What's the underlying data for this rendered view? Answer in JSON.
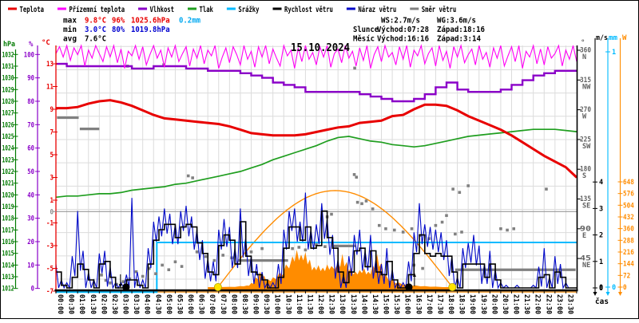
{
  "window": {
    "title": "15.10.2024",
    "bg": "#ffffff"
  },
  "legend": {
    "items": [
      {
        "label": "Teplota",
        "color": "#e80000"
      },
      {
        "label": "Přízemní teplota",
        "color": "#ff00ff"
      },
      {
        "label": "Vlhkost",
        "color": "#8a00c8"
      },
      {
        "label": "Tlak",
        "color": "#1f9e1f"
      },
      {
        "label": "Srážky",
        "color": "#00baff"
      },
      {
        "label": "Rychlost větru",
        "color": "#000000"
      },
      {
        "label": "Náraz větru",
        "color": "#0008c8"
      },
      {
        "label": "Směr větru",
        "color": "#808080"
      }
    ]
  },
  "stats": {
    "rows": [
      {
        "label": "max",
        "temp": "9.8°C",
        "hum": "96%",
        "pres": "1025.6hPa",
        "rain": "0.2mm"
      },
      {
        "label": "min",
        "temp": "3.0°C",
        "hum": "80%",
        "pres": "1019.8hPa",
        "rain": ""
      },
      {
        "label": "avg",
        "temp": "7.6°C",
        "hum": "",
        "pres": "",
        "rain": ""
      }
    ],
    "value_colors": {
      "max": "#e80000",
      "min": "#0000d0",
      "avg": "#000000",
      "rain": "#00a8f0"
    }
  },
  "wind_info": {
    "ws": "WS:2.7m/s",
    "wg": "WG:3.6m/s"
  },
  "sun_info": {
    "label": "Slunce",
    "rise": "Východ:07:28",
    "set": "Západ:18:16"
  },
  "moon_info": {
    "label": "Měsíc",
    "rise": "Východ:16:16",
    "set": "Západ:3:14"
  },
  "axes": {
    "pressure": {
      "unit": "hPa",
      "min": 1012,
      "max": 1032,
      "step": 1,
      "color": "#007a00"
    },
    "humidity": {
      "unit": "%",
      "ticks": [
        100,
        90,
        80,
        70,
        60,
        50,
        40,
        30,
        20,
        10,
        0
      ],
      "color": "#8a00c8"
    },
    "temperature": {
      "unit": "°C",
      "ticks": [
        13,
        11,
        9,
        7,
        5,
        3,
        1,
        0,
        -1,
        -3,
        -5,
        -7
      ],
      "color": "#e80000",
      "zero_color": "#8c8c8c"
    },
    "direction": {
      "unit": "°",
      "ticks": [
        [
          360,
          "N"
        ],
        [
          315,
          "NW"
        ],
        [
          270,
          "W"
        ],
        [
          225,
          "SW"
        ],
        [
          180,
          "S"
        ],
        [
          135,
          "SE"
        ],
        [
          90,
          "E"
        ],
        [
          45,
          "NE"
        ]
      ],
      "color": "#000000",
      "label_color": "#606060"
    },
    "wind": {
      "unit": "m/s",
      "ticks": [
        0,
        1,
        2,
        3,
        4
      ],
      "color": "#000000"
    },
    "rain": {
      "unit": "mm",
      "ticks": [
        0,
        1
      ],
      "color": "#00baff"
    },
    "radiation": {
      "unit": "W",
      "ticks": [
        0,
        72,
        144,
        216,
        288,
        360,
        432,
        504,
        576,
        648
      ],
      "color": "#ff8c00"
    }
  },
  "time_axis": {
    "caption": "čas",
    "labels": [
      "00:00",
      "00:30",
      "01:00",
      "01:30",
      "02:00",
      "02:30",
      "03:00",
      "03:30",
      "04:00",
      "04:30",
      "05:00",
      "05:30",
      "06:00",
      "06:30",
      "07:00",
      "07:30",
      "08:00",
      "08:30",
      "09:00",
      "09:30",
      "10:00",
      "10:30",
      "11:00",
      "11:30",
      "12:00",
      "12:30",
      "13:00",
      "13:30",
      "14:00",
      "14:30",
      "15:00",
      "15:30",
      "16:00",
      "16:30",
      "17:00",
      "17:30",
      "18:00",
      "18:30",
      "19:00",
      "19:30",
      "20:00",
      "20:30",
      "21:00",
      "21:30",
      "22:00",
      "22:30",
      "23:00",
      "23:30"
    ]
  },
  "chart_data": {
    "type": "line",
    "x_unit": "hours 0-24",
    "title": "15.10.2024",
    "series": [
      {
        "name": "Teplota",
        "unit": "°C",
        "color": "#e80000",
        "interval_min": 30,
        "values": [
          9.1,
          9.1,
          9.2,
          9.5,
          9.7,
          9.8,
          9.6,
          9.3,
          8.9,
          8.5,
          8.2,
          8.1,
          8.0,
          7.9,
          7.8,
          7.7,
          7.5,
          7.2,
          6.9,
          6.8,
          6.7,
          6.7,
          6.7,
          6.8,
          7.0,
          7.2,
          7.4,
          7.5,
          7.8,
          7.9,
          8.0,
          8.4,
          8.5,
          9.0,
          9.4,
          9.4,
          9.3,
          8.9,
          8.4,
          8.0,
          7.6,
          7.2,
          6.7,
          6.1,
          5.5,
          4.9,
          4.4,
          3.9,
          3.0
        ]
      },
      {
        "name": "Vlhkost",
        "unit": "%",
        "color": "#8a00c8",
        "interval_min": 30,
        "values": [
          96,
          95,
          95,
          95,
          95,
          95,
          95,
          94,
          94,
          95,
          95,
          95,
          94,
          94,
          93,
          93,
          93,
          92,
          91,
          90,
          88,
          87,
          86,
          84,
          84,
          84,
          84,
          84,
          83,
          82,
          81,
          80,
          80,
          81,
          83,
          86,
          88,
          85,
          84,
          84,
          84,
          85,
          87,
          89,
          91,
          92,
          93,
          93,
          93
        ]
      },
      {
        "name": "Tlak",
        "unit": "hPa",
        "color": "#1f9e1f",
        "interval_min": 30,
        "values": [
          1019.8,
          1019.9,
          1019.9,
          1020.0,
          1020.1,
          1020.1,
          1020.2,
          1020.4,
          1020.5,
          1020.6,
          1020.7,
          1020.9,
          1021.0,
          1021.2,
          1021.4,
          1021.6,
          1021.8,
          1022.0,
          1022.3,
          1022.6,
          1023.0,
          1023.3,
          1023.6,
          1023.9,
          1024.2,
          1024.6,
          1024.9,
          1025.0,
          1024.8,
          1024.6,
          1024.5,
          1024.3,
          1024.2,
          1024.1,
          1024.2,
          1024.4,
          1024.6,
          1024.8,
          1025.0,
          1025.1,
          1025.2,
          1025.3,
          1025.4,
          1025.5,
          1025.6,
          1025.6,
          1025.6,
          1025.5,
          1025.4
        ]
      },
      {
        "name": "Přízemní teplota",
        "unit": "°C",
        "color": "#ff00f5",
        "interval_min": 10,
        "values": [
          13.9,
          14.5,
          13.6,
          14.6,
          13.3,
          14.4,
          13.8,
          14.6,
          12.8,
          14.2,
          13.5,
          14.6,
          13.9,
          13.2,
          14.5,
          13.6,
          14.6,
          13.1,
          14.3,
          12.6,
          14.1,
          13.7,
          14.6,
          13.4,
          14.5,
          12.9,
          13.8,
          14.6,
          13.5,
          14.2,
          12.7,
          14.4,
          13.6,
          14.6,
          13.2,
          13.9,
          14.5,
          12.8,
          14.3,
          13.5,
          14.6,
          13.0,
          14.2,
          13.7,
          14.6,
          12.6,
          13.6,
          14.4,
          13.1,
          14.5,
          13.8,
          12.9,
          14.6,
          13.4,
          14.1,
          12.7,
          14.5,
          13.6,
          14.6,
          13.0,
          14.3,
          13.5,
          12.8,
          14.6,
          13.7,
          14.2,
          12.6,
          14.4,
          13.2,
          14.6,
          13.4,
          14.0,
          12.9,
          14.5,
          13.6,
          14.6,
          12.7,
          13.9,
          14.3,
          13.1,
          14.6,
          13.5,
          14.1,
          12.8,
          14.4,
          13.3,
          14.6,
          12.6,
          13.8,
          14.5,
          13.2,
          14.6,
          13.6,
          14.0,
          12.9,
          14.5,
          13.4,
          14.6,
          12.7,
          14.2,
          13.7,
          14.6,
          13.0,
          13.9,
          14.4,
          12.8,
          14.6,
          13.3,
          14.1,
          12.6,
          14.5,
          13.6,
          14.6,
          13.1,
          13.8,
          14.3,
          12.9,
          14.6,
          13.4,
          14.0,
          12.7,
          14.4,
          13.5,
          14.6,
          12.8,
          13.7,
          14.5,
          13.2,
          14.6,
          12.6,
          14.1,
          13.6,
          14.6,
          13.0,
          14.3,
          12.9,
          14.5,
          13.5,
          13.9,
          14.6,
          12.8,
          14.2,
          13.4,
          14.6,
          13.2
        ]
      },
      {
        "name": "Rychlost větru",
        "unit": "m/s",
        "color": "#000000",
        "interval_min": 15,
        "values": [
          0.6,
          0.1,
          0,
          0.4,
          0.9,
          0.7,
          0.3,
          0,
          0.9,
          1.0,
          0.4,
          0,
          0,
          0.3,
          0.3,
          0.1,
          0,
          0.9,
          1.8,
          2.2,
          2.4,
          2.4,
          1.9,
          2.3,
          2.4,
          2.3,
          1.7,
          1.3,
          0.6,
          0.5,
          1.6,
          2.0,
          1.8,
          0.9,
          2.5,
          1.2,
          0.6,
          0.5,
          0.3,
          0,
          0,
          0.4,
          1.5,
          2.3,
          2.3,
          1.8,
          2.3,
          1.5,
          1.6,
          2.9,
          1.9,
          1.5,
          0.6,
          0.2,
          0.6,
          1.4,
          1.5,
          0.8,
          1.4,
          0.6,
          0.5,
          1.0,
          0.3,
          0,
          0,
          0.5,
          1.3,
          2.0,
          1.3,
          1.2,
          1.3,
          1.2,
          1.2,
          0.6,
          0,
          0.9,
          0.9,
          0.9,
          0.9,
          0.4,
          0.9,
          0.3,
          0,
          0,
          0,
          0,
          0,
          0,
          0,
          0.4,
          0.5,
          0,
          0.6,
          0.4,
          0,
          0,
          0
        ]
      },
      {
        "name": "Náraz větru",
        "unit": "m/s",
        "color": "#0008c8",
        "interval_min": 15,
        "values": [
          0.9,
          0.3,
          0.2,
          1.2,
          2.9,
          1.4,
          0.6,
          0.3,
          1.3,
          1.4,
          0.8,
          0.2,
          0.2,
          0.5,
          3.4,
          0.6,
          0.3,
          1.5,
          2.5,
          2.7,
          3.0,
          2.8,
          2.4,
          2.9,
          3.1,
          2.7,
          2.2,
          1.8,
          1.1,
          1.0,
          2.2,
          2.6,
          2.3,
          1.5,
          3.0,
          1.9,
          1.2,
          0.9,
          0.6,
          0.2,
          0.2,
          0.9,
          2.2,
          2.9,
          3.0,
          2.5,
          3.6,
          2.2,
          2.4,
          3.2,
          2.6,
          2.0,
          1.1,
          0.5,
          1.2,
          2.0,
          2.2,
          1.4,
          2.0,
          1.1,
          0.9,
          1.5,
          0.7,
          0.2,
          0.2,
          1.0,
          2.1,
          3.2,
          2.4,
          2.3,
          2.2,
          2.1,
          1.8,
          1.2,
          0.4,
          1.5,
          1.7,
          2.0,
          1.6,
          0.9,
          1.4,
          0.7,
          0.2,
          0.1,
          0,
          0.1,
          0,
          0,
          0.1,
          0.8,
          1.5,
          0.4,
          1.2,
          0.9,
          0.2,
          0,
          0
        ]
      },
      {
        "name": "Srážky kumulativně",
        "unit": "mm",
        "color": "#00baff",
        "steps": [
          [
            0,
            0
          ],
          [
            4.65,
            0.19
          ],
          [
            24,
            0.19
          ]
        ]
      },
      {
        "name": "Sluneční záření měřené",
        "unit": "W",
        "color": "#ff8c00",
        "fill": true,
        "points": [
          [
            7.0,
            0
          ],
          [
            8.0,
            2
          ],
          [
            8.5,
            6
          ],
          [
            8.8,
            10
          ],
          [
            9.0,
            25
          ],
          [
            9.2,
            60
          ],
          [
            9.4,
            95
          ],
          [
            9.6,
            70
          ],
          [
            9.8,
            45
          ],
          [
            10.0,
            60
          ],
          [
            10.3,
            90
          ],
          [
            10.6,
            140
          ],
          [
            10.9,
            190
          ],
          [
            11.1,
            230
          ],
          [
            11.3,
            200
          ],
          [
            11.5,
            215
          ],
          [
            11.7,
            170
          ],
          [
            11.9,
            125
          ],
          [
            12.1,
            135
          ],
          [
            12.3,
            120
          ],
          [
            12.5,
            140
          ],
          [
            12.7,
            130
          ],
          [
            13.0,
            150
          ],
          [
            13.2,
            205
          ],
          [
            13.4,
            155
          ],
          [
            13.6,
            120
          ],
          [
            13.8,
            95
          ],
          [
            14.0,
            105
          ],
          [
            14.2,
            118
          ],
          [
            14.4,
            95
          ],
          [
            14.6,
            135
          ],
          [
            14.8,
            205
          ],
          [
            15.0,
            150
          ],
          [
            15.2,
            80
          ],
          [
            15.5,
            45
          ],
          [
            15.8,
            28
          ],
          [
            16.2,
            18
          ],
          [
            16.6,
            10
          ],
          [
            17.0,
            6
          ],
          [
            17.5,
            3
          ],
          [
            18.2,
            0
          ]
        ]
      },
      {
        "name": "Sluneční záření teoretické",
        "unit": "W",
        "color": "#ff8c00",
        "sunrise": 7.467,
        "sunset": 18.267,
        "peak": 594
      },
      {
        "name": "Směr větru",
        "unit": "°",
        "color": "#808080",
        "segments": [
          [
            0.05,
            1.05,
            258
          ],
          [
            1.1,
            2.0,
            241
          ],
          [
            8.4,
            10.7,
            42
          ],
          [
            12.8,
            13.8,
            64
          ],
          [
            18.4,
            23.95,
            28
          ]
        ],
        "points": [
          [
            2.1,
            20
          ],
          [
            2.3,
            12
          ],
          [
            2.5,
            8
          ],
          [
            2.8,
            6
          ],
          [
            3.1,
            10
          ],
          [
            3.4,
            14
          ],
          [
            3.7,
            25
          ],
          [
            4.0,
            18
          ],
          [
            4.3,
            30
          ],
          [
            4.6,
            22
          ],
          [
            4.9,
            35
          ],
          [
            5.2,
            28
          ],
          [
            5.5,
            40
          ],
          [
            5.8,
            33
          ],
          [
            6.1,
            170
          ],
          [
            6.3,
            167
          ],
          [
            6.5,
            55
          ],
          [
            6.9,
            48
          ],
          [
            7.3,
            42
          ],
          [
            7.7,
            50
          ],
          [
            8.1,
            46
          ],
          [
            9.0,
            55
          ],
          [
            9.5,
            60
          ],
          [
            10.9,
            60
          ],
          [
            11.2,
            62
          ],
          [
            11.5,
            58
          ],
          [
            12.0,
            66
          ],
          [
            12.4,
            63
          ],
          [
            12.5,
            108
          ],
          [
            12.7,
            112
          ],
          [
            13.75,
            172
          ],
          [
            13.85,
            168
          ],
          [
            13.9,
            130
          ],
          [
            14.1,
            128
          ],
          [
            14.3,
            132
          ],
          [
            14.6,
            120
          ],
          [
            14.9,
            95
          ],
          [
            15.2,
            90
          ],
          [
            15.6,
            88
          ],
          [
            16.0,
            85
          ],
          [
            16.4,
            90
          ],
          [
            16.5,
            35
          ],
          [
            16.8,
            80
          ],
          [
            16.9,
            30
          ],
          [
            17.2,
            75
          ],
          [
            17.5,
            95
          ],
          [
            17.8,
            100
          ],
          [
            18.0,
            110
          ],
          [
            18.3,
            150
          ],
          [
            18.4,
            82
          ],
          [
            18.6,
            145
          ],
          [
            18.7,
            85
          ],
          [
            19.0,
            155
          ],
          [
            20.5,
            90
          ],
          [
            20.8,
            88
          ],
          [
            21.1,
            90
          ],
          [
            22.6,
            150
          ],
          [
            3.3,
            336
          ],
          [
            4.97,
            338
          ],
          [
            13.77,
            333
          ]
        ]
      }
    ],
    "events": {
      "sun": [
        {
          "h": 7.467,
          "type": "rise"
        },
        {
          "h": 18.267,
          "type": "set"
        }
      ],
      "moon": [
        {
          "h": 3.233,
          "type": "set"
        },
        {
          "h": 16.267,
          "type": "rise"
        }
      ]
    }
  }
}
